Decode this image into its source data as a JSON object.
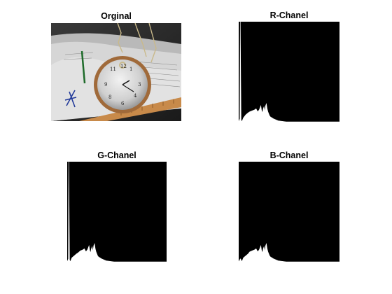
{
  "figure": {
    "panels": [
      {
        "id": "original",
        "title": "Orginal"
      },
      {
        "id": "r",
        "title": "R-Chanel"
      },
      {
        "id": "g",
        "title": "G-Chanel"
      },
      {
        "id": "b",
        "title": "B-Chanel"
      }
    ]
  },
  "chart_data": [
    {
      "type": "area",
      "title": "R-Chanel",
      "xlabel": "",
      "ylabel": "",
      "grid": false,
      "xlim": [
        0,
        255
      ],
      "x": [
        0,
        3,
        4,
        6,
        8,
        12,
        18,
        24,
        28,
        34,
        40,
        44,
        48,
        52,
        56,
        58,
        60,
        62,
        64,
        66,
        68,
        70,
        72,
        74,
        76,
        78,
        80,
        84,
        88,
        94,
        100,
        120,
        140,
        160,
        200,
        240,
        255
      ],
      "values": [
        0.0,
        0.03,
        1.0,
        0.02,
        0.0,
        0.04,
        0.07,
        0.09,
        0.1,
        0.11,
        0.12,
        0.13,
        0.1,
        0.12,
        0.16,
        0.11,
        0.09,
        0.13,
        0.15,
        0.1,
        0.16,
        0.18,
        0.13,
        0.1,
        0.08,
        0.06,
        0.05,
        0.04,
        0.03,
        0.02,
        0.01,
        0.0,
        0.0,
        0.0,
        0.0,
        0.0,
        0.0
      ]
    },
    {
      "type": "area",
      "title": "G-Chanel",
      "xlabel": "",
      "ylabel": "",
      "grid": false,
      "xlim": [
        0,
        255
      ],
      "x": [
        0,
        3,
        4,
        6,
        8,
        12,
        18,
        24,
        28,
        34,
        40,
        44,
        48,
        52,
        56,
        58,
        60,
        62,
        64,
        66,
        68,
        70,
        72,
        74,
        76,
        78,
        80,
        84,
        88,
        94,
        100,
        120,
        140,
        160,
        200,
        240,
        255
      ],
      "values": [
        0.0,
        0.03,
        1.0,
        0.02,
        0.0,
        0.04,
        0.06,
        0.08,
        0.09,
        0.11,
        0.12,
        0.13,
        0.1,
        0.12,
        0.16,
        0.11,
        0.09,
        0.13,
        0.15,
        0.1,
        0.16,
        0.18,
        0.13,
        0.1,
        0.08,
        0.06,
        0.05,
        0.04,
        0.03,
        0.02,
        0.01,
        0.0,
        0.0,
        0.0,
        0.0,
        0.0,
        0.0
      ]
    },
    {
      "type": "area",
      "title": "B-Chanel",
      "xlabel": "",
      "ylabel": "",
      "grid": false,
      "xlim": [
        0,
        255
      ],
      "x": [
        0,
        3,
        4,
        6,
        8,
        12,
        18,
        24,
        28,
        34,
        40,
        44,
        48,
        52,
        56,
        58,
        60,
        62,
        64,
        66,
        68,
        70,
        72,
        74,
        76,
        78,
        80,
        84,
        88,
        94,
        100,
        120,
        140,
        160,
        200,
        240,
        255
      ],
      "values": [
        0.0,
        0.02,
        0.03,
        0.02,
        0.0,
        0.04,
        0.06,
        0.08,
        0.1,
        0.11,
        0.12,
        0.13,
        0.1,
        0.12,
        0.16,
        0.11,
        0.09,
        0.13,
        0.15,
        0.1,
        0.16,
        0.18,
        0.13,
        0.1,
        0.08,
        0.06,
        0.05,
        0.04,
        0.03,
        0.02,
        0.01,
        0.0,
        0.0,
        0.0,
        0.0,
        0.0,
        0.0
      ]
    }
  ]
}
